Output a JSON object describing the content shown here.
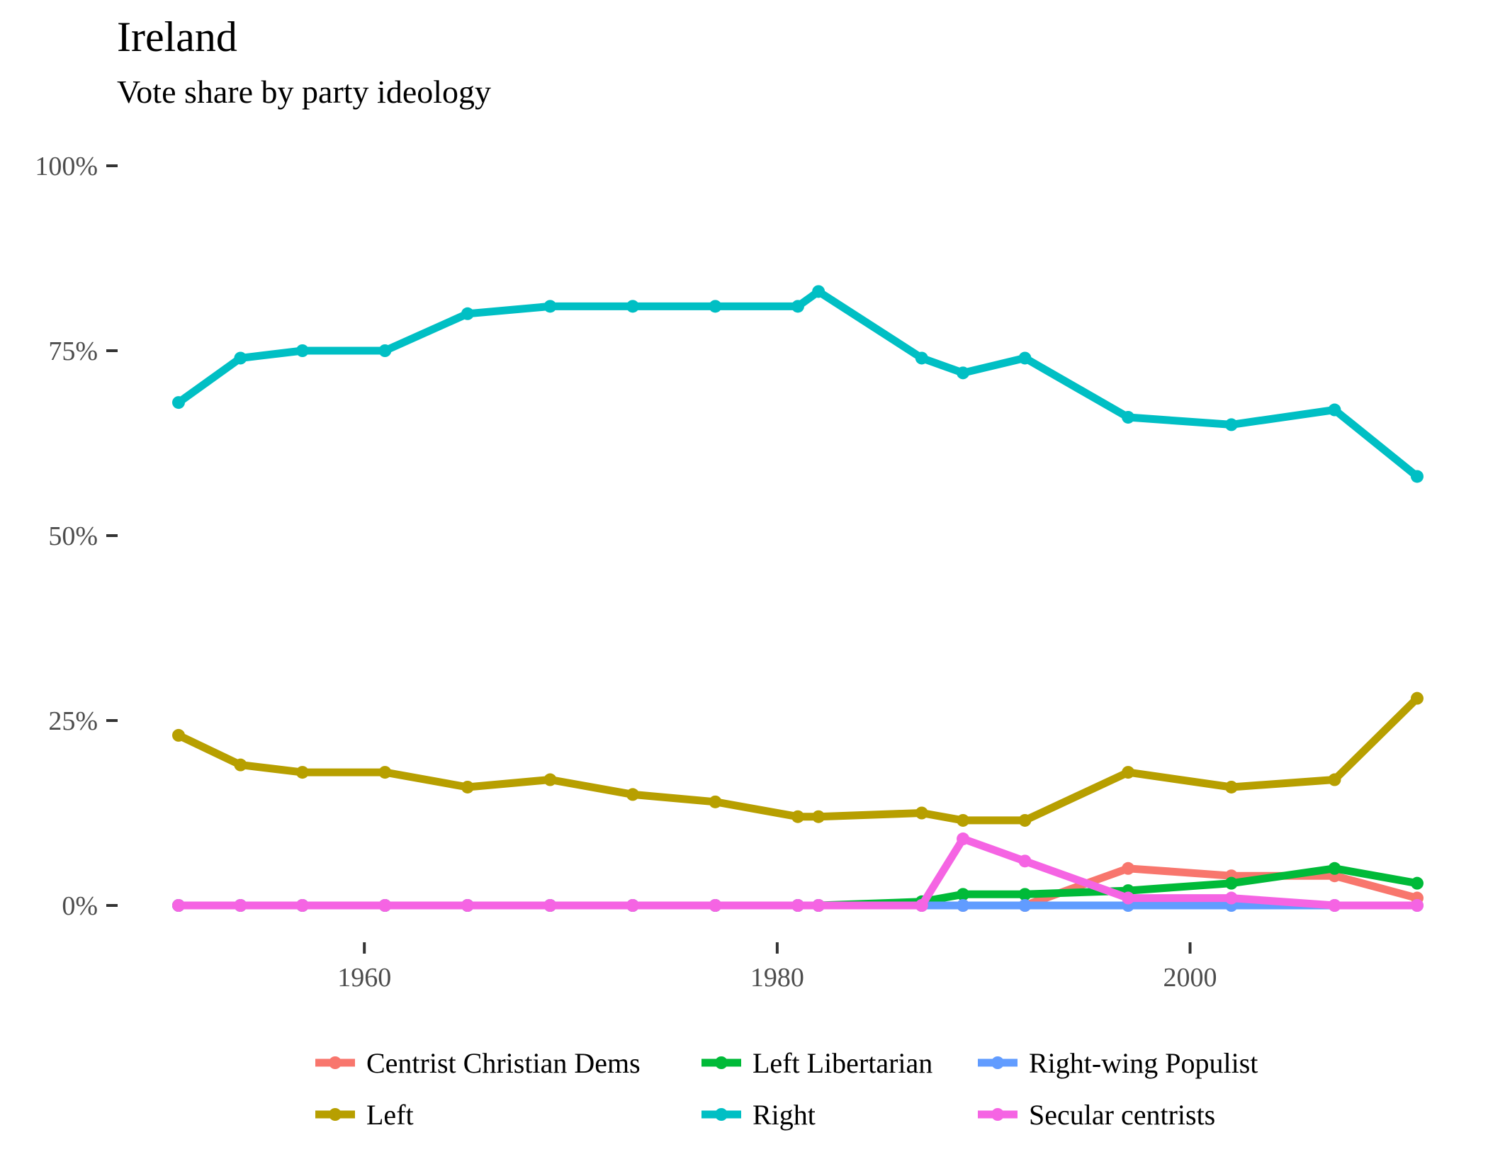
{
  "chart_data": {
    "type": "line",
    "title": "Ireland",
    "subtitle": "Vote share by party ideology",
    "xlabel": "",
    "ylabel": "",
    "xlim": [
      1951,
      2011
    ],
    "ylim": [
      0,
      100
    ],
    "x_ticks": [
      1960,
      1980,
      2000
    ],
    "y_ticks": [
      0,
      25,
      50,
      75,
      100
    ],
    "y_tick_labels": [
      "0%",
      "25%",
      "50%",
      "75%",
      "100%"
    ],
    "grid": false,
    "legend_placement": "bottom",
    "x": [
      1951,
      1954,
      1957,
      1961,
      1965,
      1969,
      1973,
      1977,
      1981,
      1982,
      1987,
      1989,
      1992,
      1997,
      2002,
      2007,
      2011
    ],
    "series": [
      {
        "name": "Centrist Christian Dems",
        "color": "#F8766D",
        "values": [
          0,
          0,
          0,
          0,
          0,
          0,
          0,
          0,
          0,
          0,
          0,
          0,
          0,
          5,
          4,
          4,
          1
        ]
      },
      {
        "name": "Left",
        "color": "#B79F00",
        "values": [
          23,
          19,
          18,
          18,
          16,
          17,
          15,
          14,
          12,
          12,
          12.5,
          11.5,
          11.5,
          18,
          16,
          17,
          28
        ]
      },
      {
        "name": "Left Libertarian",
        "color": "#00BA38",
        "values": [
          0,
          0,
          0,
          0,
          0,
          0,
          0,
          0,
          0,
          0,
          0.5,
          1.5,
          1.5,
          2,
          3,
          5,
          3
        ]
      },
      {
        "name": "Right",
        "color": "#00BFC4",
        "values": [
          68,
          74,
          75,
          75,
          80,
          81,
          81,
          81,
          81,
          83,
          74,
          72,
          74,
          66,
          65,
          67,
          58
        ]
      },
      {
        "name": "Right-wing Populist",
        "color": "#619CFF",
        "values": [
          0,
          0,
          0,
          0,
          0,
          0,
          0,
          0,
          0,
          0,
          0,
          0,
          0,
          0,
          0,
          0,
          0
        ]
      },
      {
        "name": "Secular centrists",
        "color": "#F564E3",
        "values": [
          0,
          0,
          0,
          0,
          0,
          0,
          0,
          0,
          0,
          0,
          0,
          9,
          6,
          1,
          1,
          0,
          0
        ]
      }
    ],
    "legend_order": [
      "Centrist Christian Dems",
      "Left Libertarian",
      "Right-wing Populist",
      "Left",
      "Right",
      "Secular centrists"
    ],
    "draw_order": [
      "Centrist Christian Dems",
      "Left",
      "Left Libertarian",
      "Right",
      "Right-wing Populist",
      "Secular centrists"
    ]
  }
}
